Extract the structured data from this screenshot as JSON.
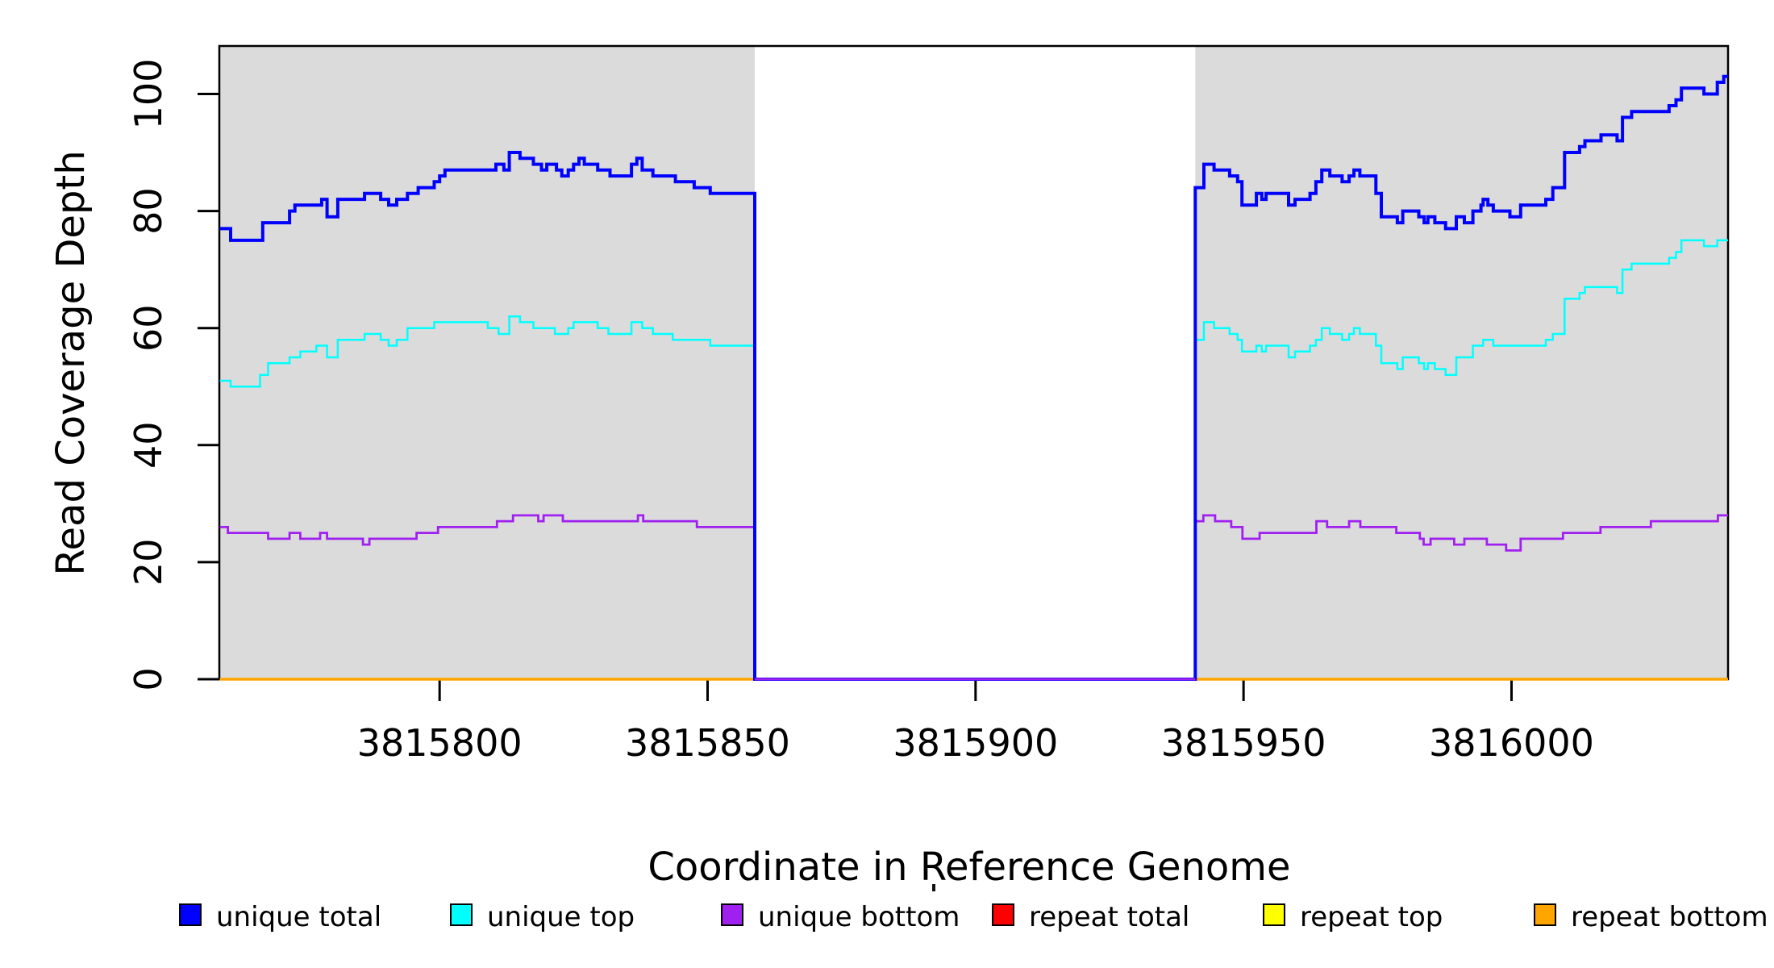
{
  "chart_data": {
    "type": "line",
    "subtype": "step-coverage-plot",
    "title": "",
    "xlabel": "Coordinate in Reference Genome",
    "ylabel": "Read Coverage Depth",
    "xlim": [
      3815758.9,
      3816040.4
    ],
    "ylim": [
      0,
      108.2
    ],
    "x_ticks": [
      3815800,
      3815850,
      3815900,
      3815950,
      3816000
    ],
    "x_tick_labels": [
      "3815800",
      "3815850",
      "3815900",
      "3815950",
      "3816000"
    ],
    "y_ticks": [
      0,
      20,
      40,
      60,
      80,
      100
    ],
    "y_tick_labels": [
      "0",
      "20",
      "40",
      "60",
      "80",
      "100"
    ],
    "grid": false,
    "background_color": "#ffffff",
    "shaded_region_color": "#DBDBDB",
    "shaded_regions": [
      [
        3815758.9,
        3815858.8
      ],
      [
        3815941.0,
        3816040.4
      ]
    ],
    "gap_region": [
      3815858.8,
      3815941.0
    ],
    "legend_position": "bottom",
    "series": [
      {
        "name": "repeat top",
        "color": "#FFFF00",
        "width": 3,
        "segments": [
          [
            [
              3815759,
              0
            ],
            [
              3815858.8,
              0
            ]
          ],
          [
            [
              3815941,
              0
            ],
            [
              3816040.4,
              0
            ]
          ]
        ]
      },
      {
        "name": "repeat total",
        "color": "#FF0000",
        "width": 3,
        "segments": [
          [
            [
              3815759,
              0
            ],
            [
              3815858.8,
              0
            ]
          ],
          [
            [
              3815941,
              0
            ],
            [
              3816040.4,
              0
            ]
          ]
        ]
      },
      {
        "name": "repeat bottom",
        "color": "#FFA500",
        "width": 3.5,
        "segments": [
          [
            [
              3815759,
              0
            ],
            [
              3815858.8,
              0
            ]
          ],
          [
            [
              3815941,
              0
            ],
            [
              3816040.4,
              0
            ]
          ]
        ]
      },
      {
        "name": "unique top",
        "color": "#00FFFF",
        "width": 2.5,
        "segments": [
          [
            [
              3815759,
              51
            ],
            [
              3815761,
              50
            ],
            [
              3815766.5,
              52
            ],
            [
              3815768,
              54
            ],
            [
              3815772,
              55
            ],
            [
              3815774,
              56
            ],
            [
              3815777,
              57
            ],
            [
              3815779,
              55
            ],
            [
              3815781,
              58
            ],
            [
              3815786,
              59
            ],
            [
              3815789,
              58
            ],
            [
              3815790.5,
              57
            ],
            [
              3815792,
              58
            ],
            [
              3815794,
              60
            ],
            [
              3815799,
              61
            ],
            [
              3815809,
              60
            ],
            [
              3815811,
              59
            ],
            [
              3815813,
              62
            ],
            [
              3815815,
              61
            ],
            [
              3815817.5,
              60
            ],
            [
              3815821.5,
              59
            ],
            [
              3815824,
              60
            ],
            [
              3815825,
              61
            ],
            [
              3815829.5,
              60
            ],
            [
              3815831.5,
              59
            ],
            [
              3815835.8,
              61
            ],
            [
              3815837.8,
              60
            ],
            [
              3815839.8,
              59
            ],
            [
              3815843.5,
              58
            ],
            [
              3815850.5,
              57
            ],
            [
              3815858.8,
              0
            ],
            [
              3815941,
              58
            ],
            [
              3815942.6,
              61
            ],
            [
              3815944.5,
              60
            ],
            [
              3815947.4,
              59
            ],
            [
              3815948.9,
              58
            ],
            [
              3815949.7,
              56
            ],
            [
              3815952.4,
              57
            ],
            [
              3815953.4,
              56
            ],
            [
              3815954.2,
              57
            ],
            [
              3815958.4,
              55
            ],
            [
              3815959.6,
              56
            ],
            [
              3815962.4,
              57
            ],
            [
              3815963.5,
              58
            ],
            [
              3815964.6,
              60
            ],
            [
              3815966.1,
              59
            ],
            [
              3815968.4,
              58
            ],
            [
              3815969.7,
              59
            ],
            [
              3815970.6,
              60
            ],
            [
              3815971.7,
              59
            ],
            [
              3815974.7,
              57
            ],
            [
              3815975.7,
              54
            ],
            [
              3815978.7,
              53
            ],
            [
              3815979.7,
              55
            ],
            [
              3815982.7,
              54
            ],
            [
              3815983.7,
              53
            ],
            [
              3815984.4,
              54
            ],
            [
              3815985.7,
              53
            ],
            [
              3815987.7,
              52
            ],
            [
              3815989.7,
              55
            ],
            [
              3815992.8,
              57
            ],
            [
              3815994.7,
              58
            ],
            [
              3815996.6,
              57
            ],
            [
              3816006.4,
              58
            ],
            [
              3816007.7,
              59
            ],
            [
              3816009.9,
              65
            ],
            [
              3816012.7,
              66
            ],
            [
              3816013.7,
              67
            ],
            [
              3816019.7,
              66
            ],
            [
              3816020.7,
              70
            ],
            [
              3816022.4,
              71
            ],
            [
              3816029.4,
              72
            ],
            [
              3816030.7,
              73
            ],
            [
              3816031.7,
              75
            ],
            [
              3816035.9,
              74
            ],
            [
              3816038.4,
              75
            ],
            [
              3816040.4,
              75
            ]
          ]
        ]
      },
      {
        "name": "unique bottom",
        "color": "#A020F0",
        "width": 2.8,
        "overlay_gap_zero": true,
        "segments": [
          [
            [
              3815759,
              26
            ],
            [
              3815760.5,
              25
            ],
            [
              3815768,
              24
            ],
            [
              3815772,
              25
            ],
            [
              3815774,
              24
            ],
            [
              3815777.7,
              25
            ],
            [
              3815779,
              24
            ],
            [
              3815785.7,
              23
            ],
            [
              3815786.9,
              24
            ],
            [
              3815795.7,
              25
            ],
            [
              3815799.7,
              26
            ],
            [
              3815810.7,
              27
            ],
            [
              3815813.7,
              28
            ],
            [
              3815818.4,
              27
            ],
            [
              3815819.4,
              28
            ],
            [
              3815823,
              27
            ],
            [
              3815837,
              28
            ],
            [
              3815838,
              27
            ],
            [
              3815848,
              26
            ],
            [
              3815858.8,
              0
            ],
            [
              3815941,
              27
            ],
            [
              3815942.5,
              28
            ],
            [
              3815944.7,
              27
            ],
            [
              3815947.7,
              26
            ],
            [
              3815949.8,
              24
            ],
            [
              3815953,
              25
            ],
            [
              3815963.6,
              27
            ],
            [
              3815965.6,
              26
            ],
            [
              3815969.7,
              27
            ],
            [
              3815971.8,
              26
            ],
            [
              3815978.5,
              25
            ],
            [
              3815982.9,
              24
            ],
            [
              3815983.6,
              23
            ],
            [
              3815984.9,
              24
            ],
            [
              3815989.3,
              23
            ],
            [
              3815991.2,
              24
            ],
            [
              3815995.4,
              23
            ],
            [
              3815999,
              22
            ],
            [
              3816001.7,
              24
            ],
            [
              3816009.6,
              25
            ],
            [
              3816016.6,
              26
            ],
            [
              3816026,
              27
            ],
            [
              3816038.5,
              28
            ],
            [
              3816040.4,
              28
            ]
          ]
        ]
      },
      {
        "name": "unique total",
        "color": "#0000FF",
        "width": 4,
        "segments": [
          [
            [
              3815759,
              77
            ],
            [
              3815761,
              75
            ],
            [
              3815767,
              78
            ],
            [
              3815772,
              80
            ],
            [
              3815773,
              81
            ],
            [
              3815778,
              82
            ],
            [
              3815779,
              79
            ],
            [
              3815781,
              82
            ],
            [
              3815786,
              83
            ],
            [
              3815789,
              82
            ],
            [
              3815790.5,
              81
            ],
            [
              3815792,
              82
            ],
            [
              3815794,
              83
            ],
            [
              3815796,
              84
            ],
            [
              3815799,
              85
            ],
            [
              3815800,
              86
            ],
            [
              3815801,
              87
            ],
            [
              3815810.5,
              88
            ],
            [
              3815812,
              87
            ],
            [
              3815813,
              90
            ],
            [
              3815815,
              89
            ],
            [
              3815817.5,
              88
            ],
            [
              3815819,
              87
            ],
            [
              3815820,
              88
            ],
            [
              3815821.8,
              87
            ],
            [
              3815822.8,
              86
            ],
            [
              3815824,
              87
            ],
            [
              3815825,
              88
            ],
            [
              3815826,
              89
            ],
            [
              3815827,
              88
            ],
            [
              3815829.5,
              87
            ],
            [
              3815831.8,
              86
            ],
            [
              3815835.8,
              88
            ],
            [
              3815836.8,
              89
            ],
            [
              3815837.8,
              87
            ],
            [
              3815839.8,
              86
            ],
            [
              3815844,
              85
            ],
            [
              3815847.5,
              84
            ],
            [
              3815850.5,
              83
            ],
            [
              3815858.8,
              0
            ],
            [
              3815941,
              84
            ],
            [
              3815942.6,
              88
            ],
            [
              3815944.5,
              87
            ],
            [
              3815947.4,
              86
            ],
            [
              3815948.9,
              85
            ],
            [
              3815949.7,
              81
            ],
            [
              3815952.4,
              83
            ],
            [
              3815953.4,
              82
            ],
            [
              3815954.2,
              83
            ],
            [
              3815958.4,
              81
            ],
            [
              3815959.6,
              82
            ],
            [
              3815962.4,
              83
            ],
            [
              3815963.5,
              85
            ],
            [
              3815964.6,
              87
            ],
            [
              3815966.1,
              86
            ],
            [
              3815968.4,
              85
            ],
            [
              3815969.7,
              86
            ],
            [
              3815970.6,
              87
            ],
            [
              3815971.7,
              86
            ],
            [
              3815974.7,
              83
            ],
            [
              3815975.7,
              79
            ],
            [
              3815978.7,
              78
            ],
            [
              3815979.7,
              80
            ],
            [
              3815982.7,
              79
            ],
            [
              3815983.7,
              78
            ],
            [
              3815984.4,
              79
            ],
            [
              3815985.7,
              78
            ],
            [
              3815987.7,
              77
            ],
            [
              3815989.7,
              79
            ],
            [
              3815991.2,
              78
            ],
            [
              3815992.8,
              80
            ],
            [
              3815994.3,
              81
            ],
            [
              3815994.7,
              82
            ],
            [
              3815995.6,
              81
            ],
            [
              3815996.6,
              80
            ],
            [
              3815999.7,
              79
            ],
            [
              3816001.7,
              81
            ],
            [
              3816006.4,
              82
            ],
            [
              3816007.7,
              84
            ],
            [
              3816009.9,
              90
            ],
            [
              3816012.7,
              91
            ],
            [
              3816013.7,
              92
            ],
            [
              3816016.7,
              93
            ],
            [
              3816019.7,
              92
            ],
            [
              3816020.7,
              96
            ],
            [
              3816022.4,
              97
            ],
            [
              3816029.4,
              98
            ],
            [
              3816030.7,
              99
            ],
            [
              3816031.7,
              101
            ],
            [
              3816035.9,
              100
            ],
            [
              3816038.4,
              102
            ],
            [
              3816039.6,
              103
            ],
            [
              3816040.4,
              103
            ]
          ]
        ]
      }
    ]
  },
  "labels": {
    "xlabel": "Coordinate in Reference Genome",
    "ylabel": "Read Coverage Depth"
  },
  "legend": {
    "items": [
      {
        "label": "unique total",
        "color": "#0000FF"
      },
      {
        "label": "unique top",
        "color": "#00FFFF"
      },
      {
        "label": "unique bottom",
        "color": "#A020F0"
      },
      {
        "label": "repeat total",
        "color": "#FF0000"
      },
      {
        "label": "repeat top",
        "color": "#FFFF00"
      },
      {
        "label": "repeat bottom",
        "color": "#FFA500"
      }
    ]
  },
  "colors": {
    "axis": "#000000",
    "shaded_region": "#DBDBDB",
    "background": "#ffffff"
  }
}
